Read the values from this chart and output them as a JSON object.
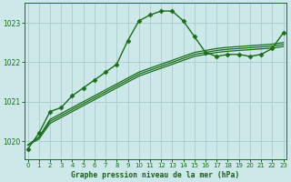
{
  "bg_color": "#cce8e8",
  "grid_color": "#aacccc",
  "line_color": "#1a6e1a",
  "marker_color": "#1a6e1a",
  "xlabel": "Graphe pression niveau de la mer (hPa)",
  "xlabel_color": "#1a5e1a",
  "yticks": [
    1020,
    1021,
    1022,
    1023
  ],
  "xticks": [
    0,
    1,
    2,
    3,
    4,
    5,
    6,
    7,
    8,
    9,
    10,
    11,
    12,
    13,
    14,
    15,
    16,
    17,
    18,
    19,
    20,
    21,
    22,
    23
  ],
  "xlim": [
    -0.3,
    23.3
  ],
  "ylim": [
    1019.55,
    1023.5
  ],
  "series": [
    {
      "y": [
        1019.8,
        1020.2,
        1020.75,
        1020.85,
        1021.15,
        1021.35,
        1021.55,
        1021.75,
        1021.95,
        1022.55,
        1023.05,
        1023.2,
        1023.3,
        1023.3,
        1023.05,
        1022.65,
        1022.25,
        1022.15,
        1022.2,
        1022.2,
        1022.15,
        1022.2,
        1022.35,
        1022.75
      ],
      "marker": true,
      "lw": 1.0,
      "ms": 2.5,
      "zorder": 5
    },
    {
      "y": [
        1019.9,
        1020.1,
        1020.55,
        1020.7,
        1020.85,
        1021.0,
        1021.15,
        1021.3,
        1021.45,
        1021.6,
        1021.75,
        1021.85,
        1021.95,
        1022.05,
        1022.15,
        1022.25,
        1022.3,
        1022.35,
        1022.38,
        1022.4,
        1022.42,
        1022.44,
        1022.46,
        1022.5
      ],
      "marker": false,
      "lw": 0.9,
      "ms": 0,
      "zorder": 3
    },
    {
      "y": [
        1019.9,
        1020.1,
        1020.5,
        1020.65,
        1020.8,
        1020.95,
        1021.1,
        1021.25,
        1021.4,
        1021.55,
        1021.7,
        1021.8,
        1021.9,
        1022.0,
        1022.1,
        1022.2,
        1022.25,
        1022.3,
        1022.33,
        1022.35,
        1022.37,
        1022.39,
        1022.41,
        1022.45
      ],
      "marker": false,
      "lw": 0.9,
      "ms": 0,
      "zorder": 3
    },
    {
      "y": [
        1019.9,
        1020.05,
        1020.45,
        1020.6,
        1020.75,
        1020.9,
        1021.05,
        1021.2,
        1021.35,
        1021.5,
        1021.65,
        1021.75,
        1021.85,
        1021.95,
        1022.05,
        1022.15,
        1022.2,
        1022.25,
        1022.28,
        1022.3,
        1022.32,
        1022.34,
        1022.36,
        1022.4
      ],
      "marker": false,
      "lw": 0.9,
      "ms": 0,
      "zorder": 3
    }
  ]
}
